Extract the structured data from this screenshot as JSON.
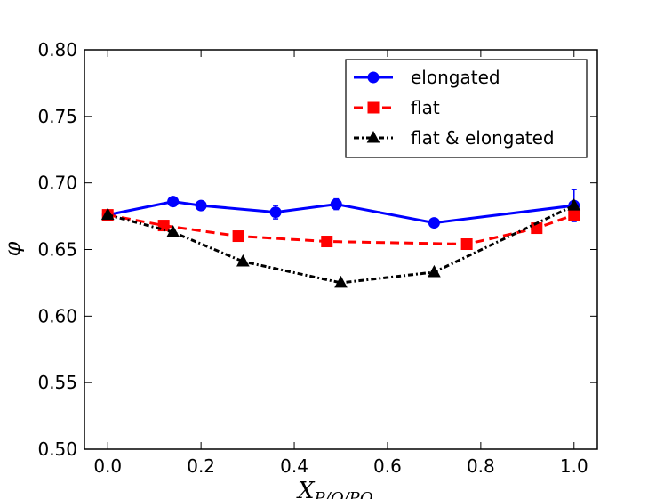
{
  "chart_data": {
    "type": "line",
    "title": "",
    "xlabel": "X_P/Q/PQ",
    "xlabel_main": "X",
    "xlabel_sub": "P/Q/PQ",
    "ylabel": "φ",
    "xlim": [
      -0.05,
      1.05
    ],
    "ylim": [
      0.5,
      0.8
    ],
    "xticks": [
      0.0,
      0.2,
      0.4,
      0.6,
      0.8,
      1.0
    ],
    "xtick_labels": [
      "0.0",
      "0.2",
      "0.4",
      "0.6",
      "0.8",
      "1.0"
    ],
    "yticks": [
      0.5,
      0.55,
      0.6,
      0.65,
      0.7,
      0.75,
      0.8
    ],
    "ytick_labels": [
      "0.50",
      "0.55",
      "0.60",
      "0.65",
      "0.70",
      "0.75",
      "0.80"
    ],
    "legend_position": "top-right",
    "series": [
      {
        "name": "elongated",
        "color": "#0000ff",
        "line_style": "solid",
        "marker": "circle",
        "x": [
          0.0,
          0.14,
          0.2,
          0.36,
          0.49,
          0.7,
          1.0
        ],
        "y": [
          0.676,
          0.686,
          0.683,
          0.678,
          0.684,
          0.67,
          0.683
        ],
        "err": [
          0.0,
          0.002,
          0.002,
          0.005,
          0.004,
          0.002,
          0.012
        ]
      },
      {
        "name": "flat",
        "color": "#ff0000",
        "line_style": "dashed",
        "marker": "square",
        "x": [
          0.0,
          0.12,
          0.28,
          0.47,
          0.77,
          0.92,
          1.0
        ],
        "y": [
          0.676,
          0.668,
          0.66,
          0.656,
          0.654,
          0.666,
          0.676
        ],
        "err": [
          0.002,
          0.002,
          0.002,
          0.002,
          0.002,
          0.002,
          0.004
        ]
      },
      {
        "name": "flat & elongated",
        "color": "#000000",
        "line_style": "dashdot",
        "marker": "triangle",
        "x": [
          0.0,
          0.14,
          0.29,
          0.5,
          0.7,
          1.0
        ],
        "y": [
          0.676,
          0.663,
          0.641,
          0.625,
          0.633,
          0.683
        ],
        "err": [
          0.001,
          0.001,
          0.001,
          0.001,
          0.001,
          0.001
        ]
      }
    ]
  }
}
